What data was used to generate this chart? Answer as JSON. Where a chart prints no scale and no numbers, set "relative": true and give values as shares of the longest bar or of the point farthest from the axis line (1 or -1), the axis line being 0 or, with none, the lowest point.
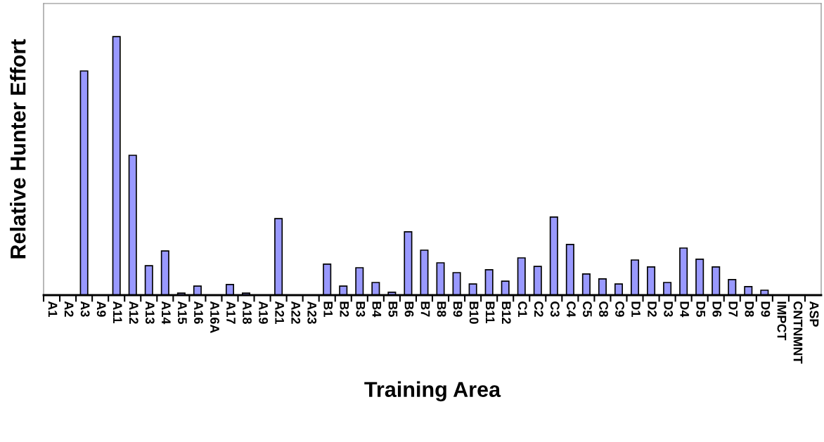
{
  "chart_data": {
    "type": "bar",
    "xlabel": "Training Area",
    "ylabel": "Relative Hunter Effort",
    "relative": true,
    "color": "#9999ff",
    "categories": [
      "A1",
      "A2",
      "A3",
      "A9",
      "A11",
      "A12",
      "A13",
      "A14",
      "A15",
      "A16",
      "A16A",
      "A17",
      "A18",
      "A19",
      "A21",
      "A22",
      "A23",
      "B1",
      "B2",
      "B3",
      "B4",
      "B5",
      "B6",
      "B7",
      "B8",
      "B9",
      "B10",
      "B11",
      "B12",
      "C1",
      "C2",
      "C3",
      "C4",
      "C5",
      "C8",
      "C9",
      "D1",
      "D2",
      "D3",
      "D4",
      "D5",
      "D6",
      "D7",
      "D8",
      "D9",
      "IMPCT",
      "CNTNMNT",
      "ASP"
    ],
    "values": [
      0,
      0,
      0.867,
      0,
      1,
      0.541,
      0.114,
      0.171,
      0.008,
      0.035,
      0,
      0.041,
      0.008,
      0,
      0.296,
      0,
      0,
      0.12,
      0.035,
      0.106,
      0.049,
      0.011,
      0.245,
      0.174,
      0.125,
      0.087,
      0.043,
      0.098,
      0.054,
      0.144,
      0.111,
      0.302,
      0.196,
      0.082,
      0.063,
      0.043,
      0.136,
      0.109,
      0.049,
      0.182,
      0.139,
      0.109,
      0.06,
      0.033,
      0.019,
      0,
      0,
      0
    ],
    "grid": false,
    "legend": false
  }
}
